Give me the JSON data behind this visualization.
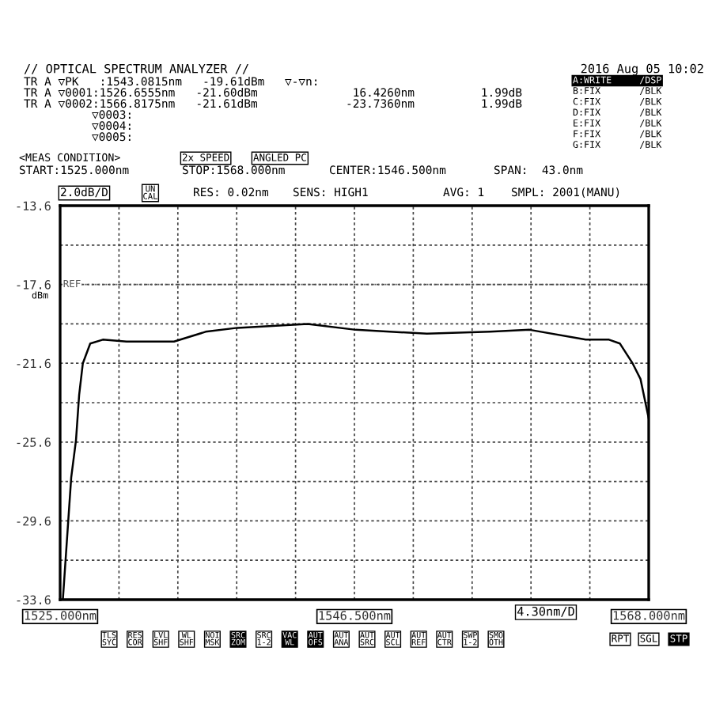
{
  "chart_data": {
    "type": "line",
    "x": [
      1525.2,
      1525.81,
      1526.16,
      1526.39,
      1526.66,
      1527.2,
      1528.12,
      1529.85,
      1533.32,
      1535.63,
      1537.95,
      1543.08,
      1546.6,
      1551.8,
      1556.4,
      1559.3,
      1563.4,
      1565.1,
      1565.9,
      1566.82,
      1567.4,
      1568.0
    ],
    "series": [
      {
        "color": "#000000",
        "values": [
          -33.6,
          -27.4,
          -25.5,
          -23.2,
          -21.6,
          -20.6,
          -20.4,
          -20.5,
          -20.5,
          -20.0,
          -19.8,
          -19.6,
          -19.9,
          -20.1,
          -20.0,
          -19.9,
          -20.4,
          -20.4,
          -20.6,
          -21.6,
          -22.4,
          -24.4
        ]
      }
    ],
    "xlim": [
      1525,
      1568
    ],
    "xticks": [
      {
        "value": 1525,
        "label": "1525.000nm"
      },
      {
        "value": 1529.3,
        "label": null
      },
      {
        "value": 1533.6,
        "label": null
      },
      {
        "value": 1537.9,
        "label": null
      },
      {
        "value": 1542.2,
        "label": null
      },
      {
        "value": 1546.5,
        "label": "1546.500nm"
      },
      {
        "value": 1550.8,
        "label": null
      },
      {
        "value": 1555.1,
        "label": null
      },
      {
        "value": 1559.4,
        "label": null
      },
      {
        "value": 1563.7,
        "label": null
      },
      {
        "value": 1568,
        "label": "1568.000nm"
      }
    ],
    "ylim": [
      -33.6,
      -13.6
    ],
    "yticks": [
      -33.6,
      {
        "value": -31.6,
        "label": null
      },
      -29.6,
      {
        "value": -27.6,
        "label": null
      },
      -25.6,
      {
        "value": -23.6,
        "label": null
      },
      -21.6,
      {
        "value": -19.6,
        "label": null
      },
      -17.6,
      {
        "value": -15.6,
        "label": null
      },
      -13.6
    ],
    "ref_lines": [
      {
        "axis": "y",
        "value": -17.6,
        "label": "REF",
        "color": "#555555",
        "line_style": "dotted"
      }
    ],
    "grid": true,
    "marker": "none",
    "line_style": "solid",
    "legend": false,
    "annotations": [
      "// OPTICAL SPECTRUM ANALYZER //",
      "2016 Aug 05 10:02",
      "TR A ▽PK   :1543.0815nm   -19.61dBm",
      "TR A ▽0001:1526.6555nm   -21.60dBm",
      "TR A ▽0002:1566.8175nm   -21.61dBm",
      "▽0003:",
      "▽0004:",
      "▽0005:",
      "▽-▽n:",
      "16.4260nm",
      "-23.7360nm",
      "1.99dB",
      "1.99dB",
      "A:WRITE     /DSP",
      "B:FIX       /BLK",
      "C:FIX       /BLK",
      "D:FIX       /BLK",
      "E:FIX       /BLK",
      "F:FIX       /BLK",
      "G:FIX       /BLK",
      "<MEAS CONDITION>",
      "2x SPEED",
      "ANGLED PC",
      "START:1525.000nm",
      "STOP:1568.000nm",
      "CENTER:1546.500nm",
      "SPAN:  43.0nm",
      "2.0dB/D",
      "UN\nCAL",
      "RES: 0.02nm",
      "SENS: HIGH1",
      "AVG: 1",
      "SMPL: 2001(MANU)",
      "dBm",
      "4.30nm/D",
      "TLS\nSYC",
      "RES\nCOR",
      "LVL\nSHF",
      "WL\nSHF",
      "NOI\nMSK",
      "SRC\nZOM",
      "SRC\n1-2",
      "VAC\nWL",
      "AUT\nOFS",
      "AUT\nANA",
      "AUT\nSRC",
      "AUT\nSCL",
      "AUT\nREF",
      "AUT\nCTR",
      "SWP\n1-2",
      "SMO\nOTH",
      "RPT",
      "SGL",
      "STP"
    ]
  }
}
